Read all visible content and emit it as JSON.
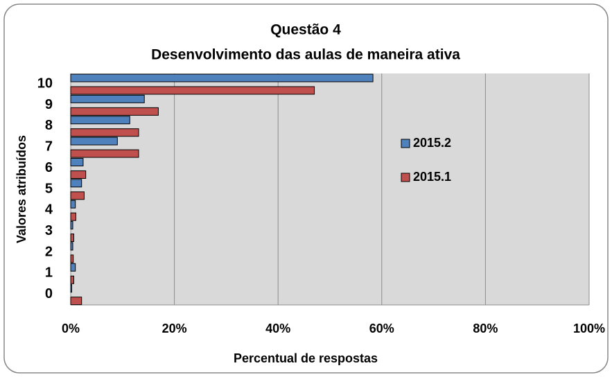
{
  "chart_data": {
    "type": "hbar",
    "title": "Questão 4",
    "subtitle": "Desenvolvimento das aulas de maneira ativa",
    "x_label": "Percentual de respostas",
    "y_label": "Valores atribuídos",
    "categories": [
      "0",
      "1",
      "2",
      "3",
      "4",
      "5",
      "6",
      "7",
      "8",
      "9",
      "10"
    ],
    "series": [
      {
        "name": "2015.2",
        "color": "#4f81bd",
        "values": [
          0.2,
          0.9,
          0.4,
          0.4,
          0.9,
          2.1,
          2.4,
          9.0,
          11.4,
          14.2,
          58.3
        ]
      },
      {
        "name": "2015.1",
        "color": "#c0504d",
        "values": [
          2.1,
          0.6,
          0.5,
          0.6,
          1.0,
          2.6,
          2.9,
          13.1,
          13.1,
          16.9,
          47.0
        ]
      }
    ],
    "xlim": [
      0,
      100
    ],
    "xticks": [
      {
        "value": 0,
        "label": "0%"
      },
      {
        "value": 20,
        "label": "20%"
      },
      {
        "value": 40,
        "label": "40%"
      },
      {
        "value": 60,
        "label": "60%"
      },
      {
        "value": 80,
        "label": "80%"
      },
      {
        "value": 100,
        "label": "100%"
      }
    ],
    "grid": true,
    "legend": "right"
  }
}
